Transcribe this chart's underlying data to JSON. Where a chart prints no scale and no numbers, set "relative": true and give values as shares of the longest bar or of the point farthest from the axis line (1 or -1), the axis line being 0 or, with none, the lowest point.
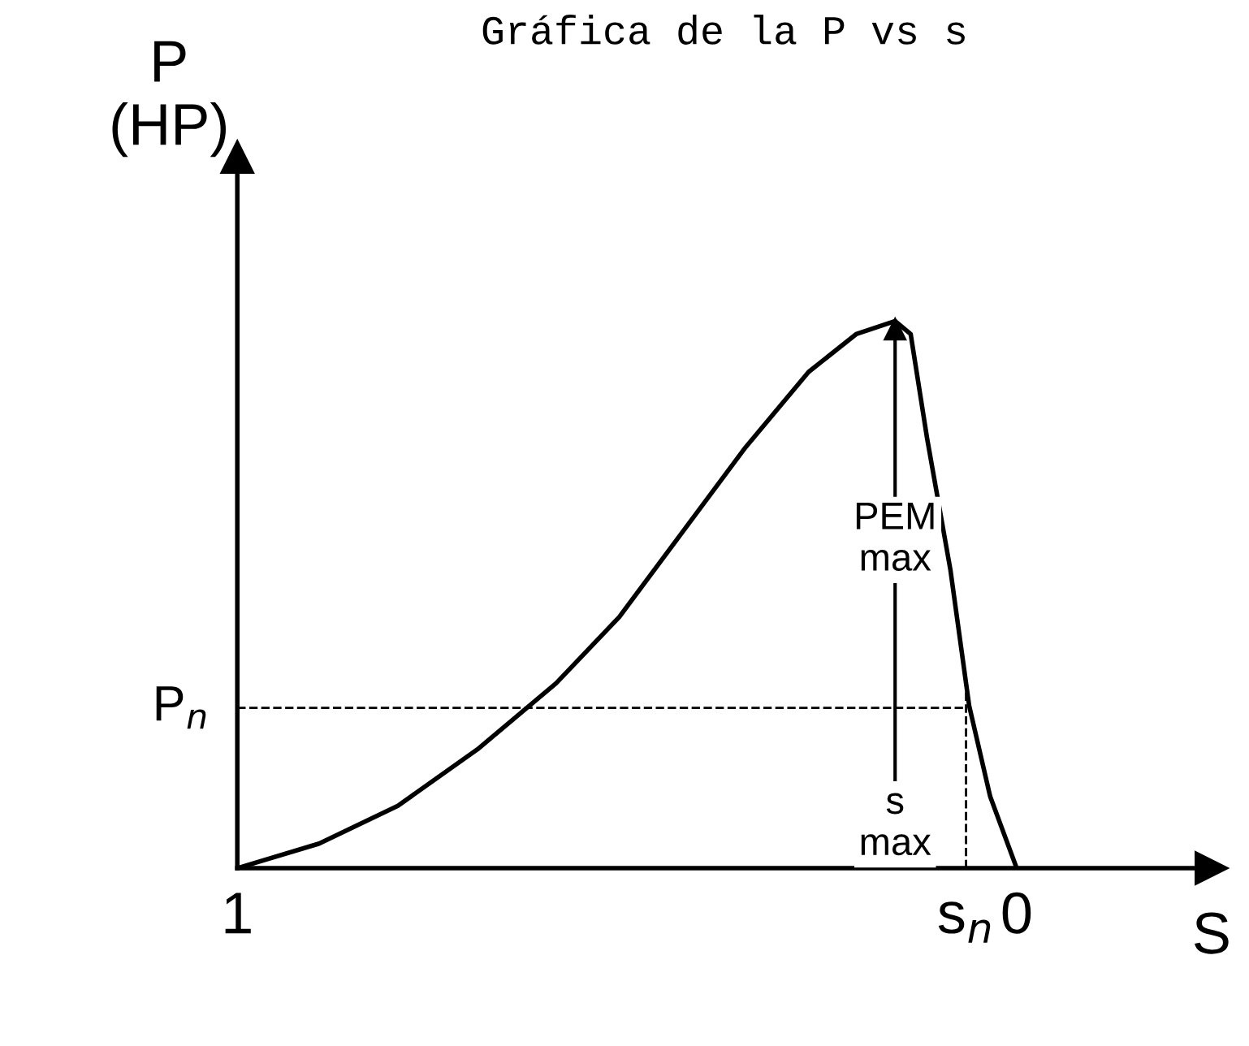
{
  "chart_data": {
    "type": "line",
    "title": "Gráfica de la P vs s",
    "xlabel": "S",
    "ylabel": "P\n(HP)",
    "relative": true,
    "color": "#000000",
    "x": [
      1.0,
      0.895,
      0.794,
      0.692,
      0.591,
      0.51,
      0.429,
      0.348,
      0.267,
      0.206,
      0.156,
      0.136,
      0.115,
      0.085,
      0.061,
      0.034,
      0.0
    ],
    "values": [
      0,
      0.045,
      0.114,
      0.217,
      0.338,
      0.459,
      0.614,
      0.769,
      0.907,
      0.976,
      1.0,
      0.976,
      0.786,
      0.545,
      0.297,
      0.131,
      0
    ],
    "xlim": [
      1,
      -0.25
    ],
    "xticks": [
      1,
      {
        "value": 0.065,
        "label": "s$_{n}$"
      },
      0
    ],
    "ref_lines": [
      {
        "axis": "y",
        "value": 0.293,
        "label": "P$_{n}$",
        "line_style": "dashed"
      },
      {
        "axis": "x",
        "value": 0.065,
        "label": null,
        "line_style": "dashed"
      },
      {
        "axis": "x",
        "value": 0.156,
        "label": null,
        "line_style": "solid"
      }
    ],
    "annotations": [
      "PEM\nmax",
      "s\nmax"
    ],
    "grid": false,
    "legend": false,
    "tick_labels": "x",
    "line_style": "solid",
    "marker": "none"
  }
}
